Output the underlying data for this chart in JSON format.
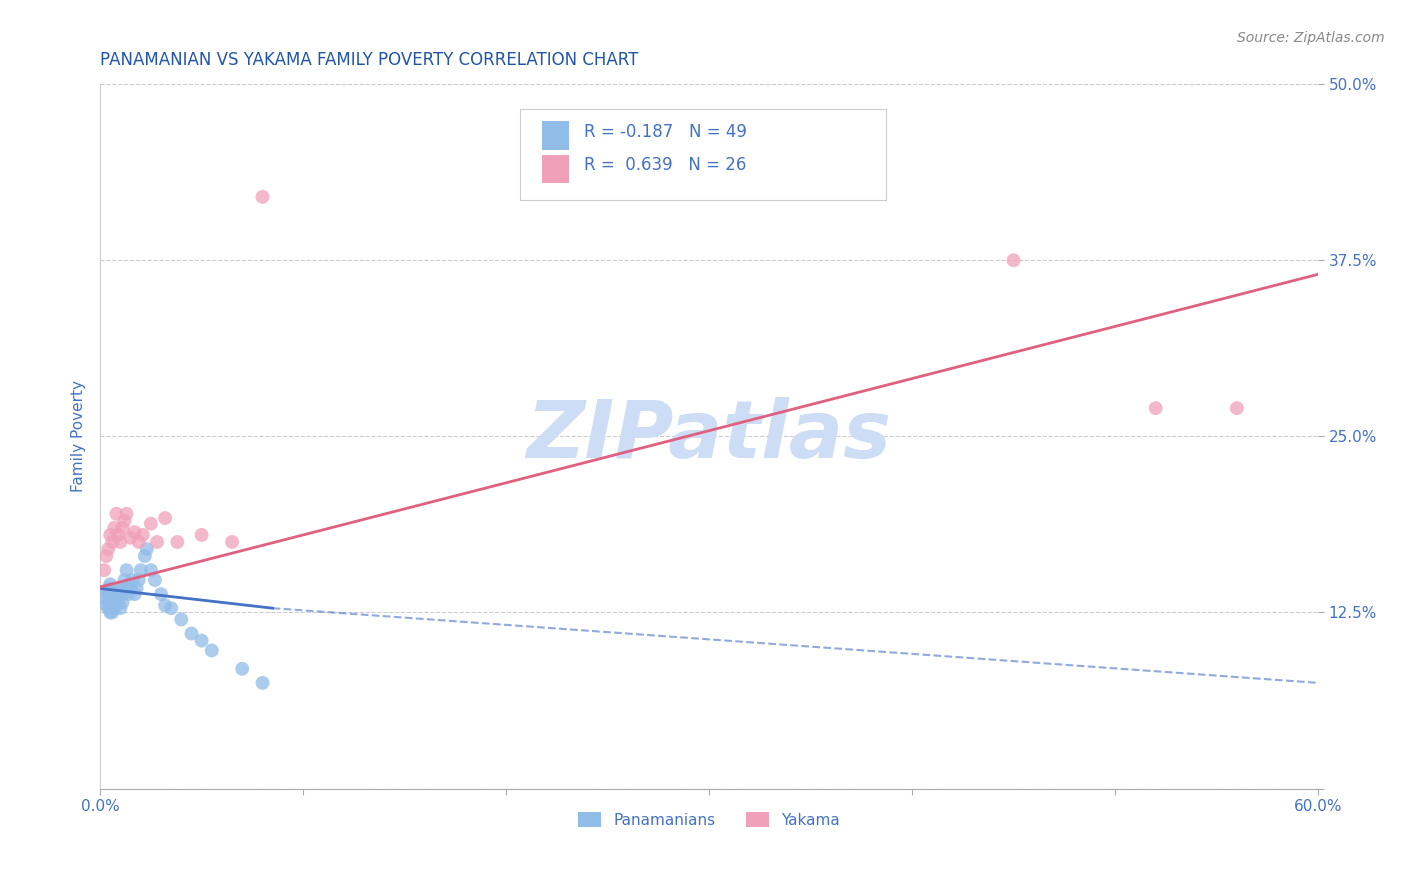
{
  "title": "PANAMANIAN VS YAKAMA FAMILY POVERTY CORRELATION CHART",
  "source_text": "Source: ZipAtlas.com",
  "ylabel": "Family Poverty",
  "xlim": [
    0.0,
    0.6
  ],
  "ylim": [
    0.0,
    0.5
  ],
  "xticks": [
    0.0,
    0.1,
    0.2,
    0.3,
    0.4,
    0.5,
    0.6
  ],
  "xticklabels": [
    "0.0%",
    "",
    "",
    "",
    "",
    "",
    "60.0%"
  ],
  "yticks": [
    0.0,
    0.125,
    0.25,
    0.375,
    0.5
  ],
  "yticklabels": [
    "",
    "12.5%",
    "25.0%",
    "37.5%",
    "50.0%"
  ],
  "grid_color": "#cccccc",
  "background_color": "#ffffff",
  "watermark": "ZIPatlas",
  "watermark_color": "#ccddf5",
  "panamanian_color": "#90bce8",
  "yakama_color": "#f0a0b8",
  "trend_pana_color": "#4472c4",
  "trend_yaka_color": "#e06080",
  "title_color": "#2255aa",
  "axis_label_color": "#4472c4",
  "tick_label_color": "#4472c4",
  "legend_box_color": "#e0e8f8",
  "legend_text_color": "#4472c4",
  "title_fontsize": 12,
  "panamanians_x": [
    0.002,
    0.003,
    0.003,
    0.004,
    0.004,
    0.004,
    0.005,
    0.005,
    0.005,
    0.005,
    0.006,
    0.006,
    0.006,
    0.006,
    0.007,
    0.007,
    0.007,
    0.007,
    0.008,
    0.008,
    0.009,
    0.009,
    0.01,
    0.01,
    0.011,
    0.011,
    0.012,
    0.013,
    0.013,
    0.014,
    0.015,
    0.016,
    0.017,
    0.018,
    0.019,
    0.02,
    0.022,
    0.023,
    0.025,
    0.027,
    0.03,
    0.032,
    0.035,
    0.04,
    0.045,
    0.05,
    0.055,
    0.07,
    0.08
  ],
  "panamanians_y": [
    0.135,
    0.14,
    0.13,
    0.142,
    0.135,
    0.128,
    0.138,
    0.132,
    0.145,
    0.125,
    0.136,
    0.142,
    0.13,
    0.125,
    0.14,
    0.133,
    0.138,
    0.128,
    0.142,
    0.135,
    0.138,
    0.132,
    0.14,
    0.128,
    0.138,
    0.132,
    0.148,
    0.142,
    0.155,
    0.138,
    0.142,
    0.148,
    0.138,
    0.142,
    0.148,
    0.155,
    0.165,
    0.17,
    0.155,
    0.148,
    0.138,
    0.13,
    0.128,
    0.12,
    0.11,
    0.105,
    0.098,
    0.085,
    0.075
  ],
  "yakama_x": [
    0.002,
    0.003,
    0.004,
    0.005,
    0.006,
    0.007,
    0.008,
    0.009,
    0.01,
    0.011,
    0.012,
    0.013,
    0.015,
    0.017,
    0.019,
    0.021,
    0.025,
    0.028,
    0.032,
    0.038,
    0.05,
    0.065,
    0.08,
    0.45,
    0.52,
    0.56
  ],
  "yakama_y": [
    0.155,
    0.165,
    0.17,
    0.18,
    0.175,
    0.185,
    0.195,
    0.18,
    0.175,
    0.185,
    0.19,
    0.195,
    0.178,
    0.182,
    0.175,
    0.18,
    0.188,
    0.175,
    0.192,
    0.175,
    0.18,
    0.175,
    0.42,
    0.375,
    0.27,
    0.27
  ],
  "trend_pana_x_solid_start": 0.0,
  "trend_pana_x_solid_end": 0.085,
  "trend_pana_x_dash_end": 0.6,
  "trend_pana_y_at_0": 0.142,
  "trend_pana_y_at_solid_end": 0.128,
  "trend_pana_y_at_dash_end": 0.075,
  "trend_yaka_x_start": 0.0,
  "trend_yaka_x_end": 0.6,
  "trend_yaka_y_start": 0.143,
  "trend_yaka_y_end": 0.365
}
